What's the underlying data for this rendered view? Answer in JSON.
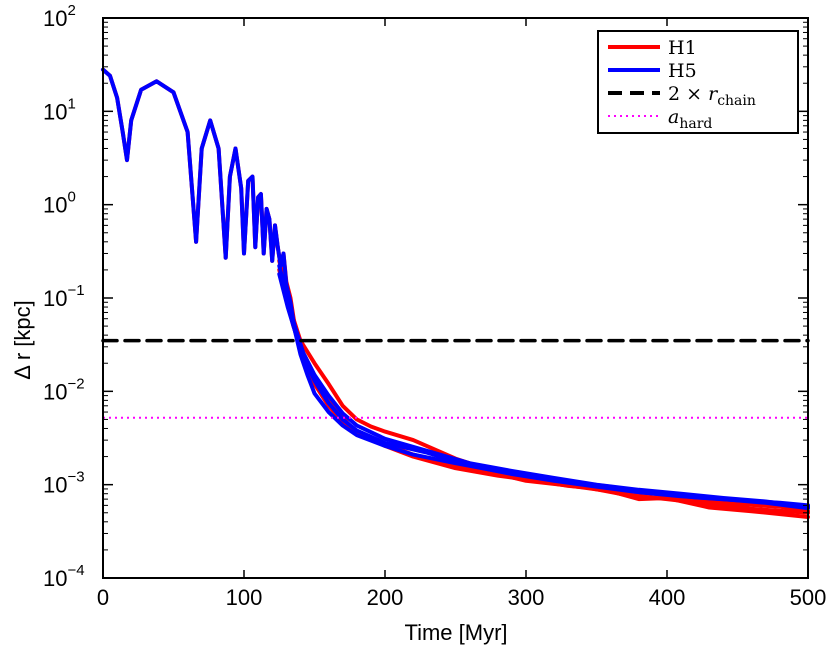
{
  "chart_data": {
    "type": "line",
    "title": "",
    "xlabel": "Time [Myr]",
    "ylabel": "Δ r [kpc]",
    "xlim": [
      0,
      500
    ],
    "ylim": [
      0.0001,
      100
    ],
    "yscale": "log",
    "grid": false,
    "legend_position": "top-right",
    "x_ticks": [
      {
        "value": 0,
        "label": "0"
      },
      {
        "value": 100,
        "label": "100"
      },
      {
        "value": 200,
        "label": "200"
      },
      {
        "value": 300,
        "label": "300"
      },
      {
        "value": 400,
        "label": "400"
      },
      {
        "value": 500,
        "label": "500"
      }
    ],
    "y_ticks": [
      {
        "value": 100,
        "base": "10",
        "exp": "2"
      },
      {
        "value": 10,
        "base": "10",
        "exp": "1"
      },
      {
        "value": 1,
        "base": "10",
        "exp": "0"
      },
      {
        "value": 0.1,
        "base": "10",
        "exp": "−1"
      },
      {
        "value": 0.01,
        "base": "10",
        "exp": "−2"
      },
      {
        "value": 0.001,
        "base": "10",
        "exp": "−3"
      },
      {
        "value": 0.0001,
        "base": "10",
        "exp": "−4"
      }
    ],
    "series": [
      {
        "name": "H1",
        "color": "#ff0000",
        "style": "solid",
        "points": [
          [
            0,
            28
          ],
          [
            5,
            24
          ],
          [
            10,
            14
          ],
          [
            14,
            6
          ],
          [
            17,
            3
          ],
          [
            20,
            8
          ],
          [
            27,
            17
          ],
          [
            38,
            21
          ],
          [
            50,
            16
          ],
          [
            60,
            6
          ],
          [
            66,
            0.4
          ],
          [
            70,
            4
          ],
          [
            76,
            8
          ],
          [
            82,
            4
          ],
          [
            87,
            0.27
          ],
          [
            90,
            2
          ],
          [
            94,
            4
          ],
          [
            98,
            1.5
          ],
          [
            100,
            0.3
          ],
          [
            103,
            1.8
          ],
          [
            106,
            2
          ],
          [
            108,
            0.35
          ],
          [
            110,
            1.2
          ],
          [
            112,
            1.3
          ],
          [
            114,
            0.3
          ],
          [
            116,
            0.9
          ],
          [
            118,
            0.7
          ],
          [
            120,
            0.25
          ],
          [
            122,
            0.6
          ],
          [
            124,
            0.35
          ],
          [
            126,
            0.22
          ],
          [
            128,
            0.3
          ],
          [
            130,
            0.15
          ],
          [
            133,
            0.1
          ],
          [
            136,
            0.05
          ],
          [
            140,
            0.03
          ],
          [
            145,
            0.018
          ],
          [
            150,
            0.012
          ],
          [
            160,
            0.007
          ],
          [
            170,
            0.0048
          ],
          [
            180,
            0.0037
          ],
          [
            200,
            0.0027
          ],
          [
            220,
            0.0021
          ],
          [
            250,
            0.0016
          ],
          [
            280,
            0.0013
          ],
          [
            300,
            0.0011
          ],
          [
            330,
            0.00098
          ],
          [
            360,
            0.00085
          ],
          [
            380,
            0.0007
          ],
          [
            400,
            0.00072
          ],
          [
            430,
            0.00057
          ],
          [
            460,
            0.00052
          ],
          [
            500,
            0.00045
          ]
        ]
      },
      {
        "name": "",
        "color": "#ff0000",
        "style": "solid",
        "points": [
          [
            125,
            0.25
          ],
          [
            130,
            0.12
          ],
          [
            135,
            0.06
          ],
          [
            140,
            0.035
          ],
          [
            150,
            0.02
          ],
          [
            160,
            0.012
          ],
          [
            170,
            0.007
          ],
          [
            180,
            0.005
          ],
          [
            190,
            0.0042
          ],
          [
            200,
            0.0037
          ],
          [
            220,
            0.003
          ],
          [
            250,
            0.0019
          ],
          [
            280,
            0.00135
          ],
          [
            300,
            0.00115
          ],
          [
            330,
            0.00097
          ],
          [
            360,
            0.00088
          ],
          [
            390,
            0.0008
          ],
          [
            420,
            0.00068
          ],
          [
            450,
            0.00062
          ],
          [
            480,
            0.00058
          ],
          [
            500,
            0.00052
          ]
        ]
      },
      {
        "name": "",
        "color": "#ff0000",
        "style": "solid",
        "points": [
          [
            125,
            0.2
          ],
          [
            130,
            0.1
          ],
          [
            135,
            0.05
          ],
          [
            142,
            0.025
          ],
          [
            150,
            0.014
          ],
          [
            160,
            0.008
          ],
          [
            170,
            0.0052
          ],
          [
            180,
            0.0036
          ],
          [
            200,
            0.0026
          ],
          [
            220,
            0.002
          ],
          [
            250,
            0.0015
          ],
          [
            280,
            0.00125
          ],
          [
            310,
            0.00108
          ],
          [
            340,
            0.00095
          ],
          [
            370,
            0.00078
          ],
          [
            400,
            0.0007
          ],
          [
            430,
            0.00062
          ],
          [
            460,
            0.00055
          ],
          [
            500,
            0.0005
          ]
        ]
      },
      {
        "name": "H5",
        "color": "#0000ff",
        "style": "solid",
        "points": [
          [
            0,
            28
          ],
          [
            5,
            24
          ],
          [
            10,
            14
          ],
          [
            14,
            6
          ],
          [
            17,
            3
          ],
          [
            20,
            8
          ],
          [
            27,
            17
          ],
          [
            38,
            21
          ],
          [
            50,
            16
          ],
          [
            60,
            6
          ],
          [
            66,
            0.4
          ],
          [
            70,
            4
          ],
          [
            76,
            8
          ],
          [
            82,
            4
          ],
          [
            87,
            0.27
          ],
          [
            90,
            2
          ],
          [
            94,
            4
          ],
          [
            98,
            1.5
          ],
          [
            100,
            0.3
          ],
          [
            103,
            1.8
          ],
          [
            106,
            2
          ],
          [
            108,
            0.35
          ],
          [
            110,
            1.2
          ],
          [
            112,
            1.3
          ],
          [
            114,
            0.3
          ],
          [
            116,
            0.9
          ],
          [
            118,
            0.7
          ],
          [
            120,
            0.25
          ],
          [
            122,
            0.6
          ],
          [
            124,
            0.35
          ],
          [
            126,
            0.22
          ],
          [
            128,
            0.3
          ],
          [
            130,
            0.14
          ],
          [
            133,
            0.09
          ],
          [
            136,
            0.045
          ],
          [
            140,
            0.025
          ],
          [
            145,
            0.015
          ],
          [
            150,
            0.0095
          ],
          [
            160,
            0.006
          ],
          [
            170,
            0.0043
          ],
          [
            180,
            0.0034
          ],
          [
            200,
            0.0026
          ],
          [
            220,
            0.0021
          ],
          [
            250,
            0.0017
          ],
          [
            280,
            0.0014
          ],
          [
            300,
            0.00125
          ],
          [
            330,
            0.00108
          ],
          [
            360,
            0.00095
          ],
          [
            390,
            0.00082
          ],
          [
            420,
            0.00073
          ],
          [
            450,
            0.00068
          ],
          [
            480,
            0.00064
          ],
          [
            500,
            0.0006
          ]
        ]
      },
      {
        "name": "",
        "color": "#0000ff",
        "style": "solid",
        "points": [
          [
            125,
            0.22
          ],
          [
            130,
            0.11
          ],
          [
            136,
            0.05
          ],
          [
            142,
            0.026
          ],
          [
            150,
            0.015
          ],
          [
            160,
            0.009
          ],
          [
            170,
            0.0058
          ],
          [
            180,
            0.0043
          ],
          [
            200,
            0.0031
          ],
          [
            230,
            0.0023
          ],
          [
            260,
            0.0017
          ],
          [
            290,
            0.0014
          ],
          [
            320,
            0.00118
          ],
          [
            350,
            0.001
          ],
          [
            380,
            0.00088
          ],
          [
            410,
            0.0008
          ],
          [
            440,
            0.00072
          ],
          [
            470,
            0.00066
          ],
          [
            500,
            0.00058
          ]
        ]
      },
      {
        "name": "",
        "color": "#0000ff",
        "style": "solid",
        "points": [
          [
            125,
            0.18
          ],
          [
            131,
            0.08
          ],
          [
            137,
            0.04
          ],
          [
            143,
            0.022
          ],
          [
            150,
            0.013
          ],
          [
            160,
            0.0075
          ],
          [
            170,
            0.005
          ],
          [
            180,
            0.0038
          ],
          [
            200,
            0.0028
          ],
          [
            230,
            0.0022
          ],
          [
            260,
            0.0016
          ],
          [
            290,
            0.0013
          ],
          [
            320,
            0.0011
          ],
          [
            350,
            0.00095
          ],
          [
            380,
            0.00083
          ],
          [
            410,
            0.00075
          ],
          [
            440,
            0.0007
          ],
          [
            470,
            0.00064
          ],
          [
            500,
            0.00056
          ]
        ]
      },
      {
        "name": "2 × r_chain",
        "color": "#000000",
        "style": "dashed",
        "points": [
          [
            0,
            0.035
          ],
          [
            500,
            0.035
          ]
        ]
      },
      {
        "name": "a_hard",
        "color": "#ff00ff",
        "style": "dotted",
        "points": [
          [
            0,
            0.0052
          ],
          [
            500,
            0.0052
          ]
        ]
      }
    ],
    "legend": [
      {
        "label": "H1",
        "sub": "",
        "prefix": "",
        "color": "#ff0000",
        "style": "solid"
      },
      {
        "label": "H5",
        "sub": "",
        "prefix": "",
        "color": "#0000ff",
        "style": "solid"
      },
      {
        "label": "r",
        "sub": "chain",
        "prefix": "2 × ",
        "color": "#000000",
        "style": "dashed"
      },
      {
        "label": "a",
        "sub": "hard",
        "prefix": "",
        "color": "#ff00ff",
        "style": "dotted"
      }
    ]
  }
}
